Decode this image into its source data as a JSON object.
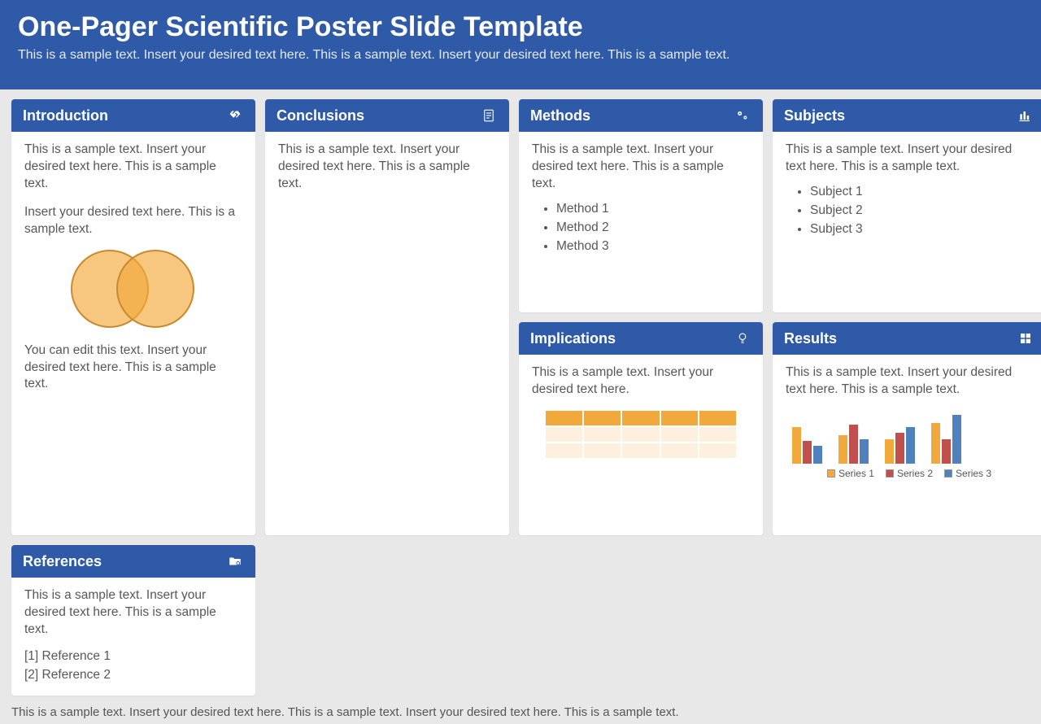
{
  "colors": {
    "primary": "#2e5aa8",
    "background": "#e8e8e8",
    "card_bg": "#ffffff",
    "text": "#575757",
    "venn_fill": "rgba(242,169,59,0.65)",
    "venn_stroke": "#c88a2e",
    "series1": "#f2a93b",
    "series2": "#c0504d",
    "series3": "#4f81bd",
    "table_header": "#f2a93b",
    "table_row_light": "#fdf0df"
  },
  "header": {
    "title": "One-Pager Scientific Poster Slide Template",
    "subtitle": "This is a sample text. Insert your desired text here. This is a sample text. Insert your desired text here. This is a sample text."
  },
  "sample_text": "This is a sample text. Insert your desired text here. This is a sample text.",
  "short_sample": "This is a sample text. Insert your desired text here.",
  "intro": {
    "title": "Introduction",
    "p1": "This is a sample text. Insert your desired text here. This is a sample text.",
    "p2": "Insert your desired text here. This is a sample text.",
    "p3": "You can edit this text. Insert your desired text here. This is a sample text."
  },
  "methods": {
    "title": "Methods",
    "items": [
      "Method 1",
      "Method 2",
      "Method 3"
    ]
  },
  "subjects": {
    "title": "Subjects",
    "items": [
      "Subject 1",
      "Subject 2",
      "Subject 3"
    ]
  },
  "conclusions": {
    "title": "Conclusions"
  },
  "implications": {
    "title": "Implications",
    "table": {
      "cols": 5,
      "rows": 3,
      "header_color": "#f2a93b",
      "row_color": "#fdf0df"
    }
  },
  "results": {
    "title": "Results",
    "chart": {
      "type": "bar",
      "clusters": 4,
      "series": [
        {
          "name": "Series 1",
          "color": "#f2a93b",
          "values": [
            45,
            35,
            30,
            50
          ]
        },
        {
          "name": "Series 2",
          "color": "#c0504d",
          "values": [
            28,
            48,
            38,
            30
          ]
        },
        {
          "name": "Series 3",
          "color": "#4f81bd",
          "values": [
            22,
            30,
            45,
            60
          ]
        }
      ],
      "ymax": 70
    }
  },
  "references": {
    "title": "References",
    "items": [
      "[1] Reference 1",
      "[2] Reference 2"
    ]
  },
  "footer": "This is a sample text. Insert your desired text here. This is a sample text. Insert your desired text here. This is a sample text."
}
